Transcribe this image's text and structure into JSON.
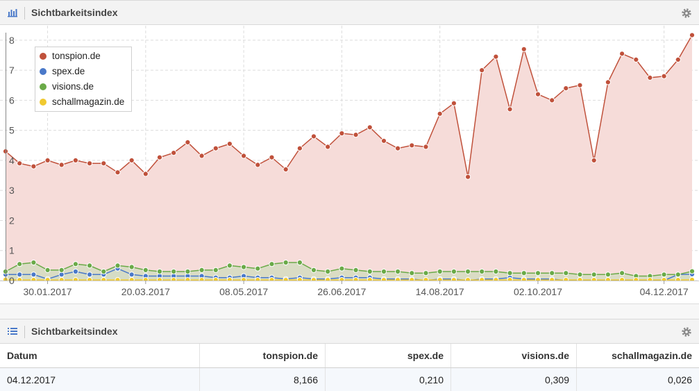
{
  "chart_panel": {
    "title": "Sichtbarkeitsindex",
    "icon": "bar-chart-icon",
    "settings_icon": "gear-icon"
  },
  "table_panel": {
    "title": "Sichtbarkeitsindex",
    "icon": "list-icon",
    "settings_icon": "gear-icon",
    "columns": [
      "Datum",
      "tonspion.de",
      "spex.de",
      "visions.de",
      "schallmagazin.de"
    ],
    "rows": [
      {
        "datum": "04.12.2017",
        "tonspion": "8,166",
        "spex": "0,210",
        "visions": "0,309",
        "schall": "0,026"
      }
    ]
  },
  "chart_data": {
    "type": "area",
    "x_tick_labels": [
      "30.01.2017",
      "20.03.2017",
      "08.05.2017",
      "26.06.2017",
      "14.08.2017",
      "02.10.2017",
      "04.12.2017"
    ],
    "x_tick_weeks": [
      3,
      10,
      17,
      24,
      31,
      38,
      47
    ],
    "y_ticks": [
      0,
      1,
      2,
      3,
      4,
      5,
      6,
      7,
      8
    ],
    "ylim": [
      0,
      8.25
    ],
    "grid": true,
    "legend_position": "top-left",
    "series": [
      {
        "name": "tonspion.de",
        "color": "#c0513b",
        "fill": "#f6dcd9",
        "values": [
          4.3,
          3.9,
          3.8,
          4.0,
          3.85,
          4.0,
          3.9,
          3.9,
          3.6,
          4.0,
          3.55,
          4.1,
          4.25,
          4.6,
          4.15,
          4.4,
          4.55,
          4.15,
          3.85,
          4.1,
          3.7,
          4.4,
          4.8,
          4.45,
          4.9,
          4.85,
          5.1,
          4.65,
          4.4,
          4.5,
          4.45,
          5.55,
          5.9,
          3.45,
          7.0,
          7.45,
          5.7,
          7.7,
          6.2,
          6.0,
          6.4,
          6.5,
          4.0,
          6.6,
          7.55,
          7.35,
          6.75,
          6.8,
          7.35,
          8.166
        ]
      },
      {
        "name": "spex.de",
        "color": "#4a79c9",
        "fill": "#d2d8e6",
        "values": [
          0.2,
          0.2,
          0.2,
          0.05,
          0.2,
          0.3,
          0.2,
          0.2,
          0.4,
          0.2,
          0.15,
          0.15,
          0.15,
          0.15,
          0.15,
          0.1,
          0.1,
          0.15,
          0.1,
          0.1,
          0.05,
          0.1,
          0.05,
          0.05,
          0.1,
          0.1,
          0.1,
          0.05,
          0.05,
          0.05,
          0.0,
          0.05,
          0.05,
          0.0,
          0.05,
          0.05,
          0.1,
          0.05,
          0.05,
          0.05,
          0.0,
          0.0,
          0.0,
          0.0,
          0.0,
          0.0,
          0.0,
          0.0,
          0.2,
          0.21
        ]
      },
      {
        "name": "visions.de",
        "color": "#6aaa48",
        "fill": "#d5dcc0",
        "values": [
          0.3,
          0.55,
          0.6,
          0.35,
          0.35,
          0.55,
          0.5,
          0.3,
          0.5,
          0.45,
          0.35,
          0.3,
          0.3,
          0.3,
          0.35,
          0.35,
          0.5,
          0.45,
          0.4,
          0.55,
          0.6,
          0.6,
          0.35,
          0.3,
          0.4,
          0.35,
          0.3,
          0.3,
          0.3,
          0.25,
          0.25,
          0.3,
          0.3,
          0.3,
          0.3,
          0.3,
          0.25,
          0.25,
          0.25,
          0.25,
          0.25,
          0.2,
          0.2,
          0.2,
          0.25,
          0.15,
          0.15,
          0.2,
          0.2,
          0.309
        ]
      },
      {
        "name": "schallmagazin.de",
        "color": "#f0c930",
        "fill": "#f3eccc",
        "values": [
          0.03,
          0.02,
          0.02,
          0.02,
          0.02,
          0.02,
          0.02,
          0.02,
          0.02,
          0.02,
          0.02,
          0.02,
          0.02,
          0.02,
          0.02,
          0.02,
          0.02,
          0.02,
          0.02,
          0.02,
          0.02,
          0.02,
          0.02,
          0.02,
          0.02,
          0.02,
          0.02,
          0.02,
          0.02,
          0.02,
          0.02,
          0.02,
          0.02,
          0.02,
          0.02,
          0.02,
          0.02,
          0.02,
          0.02,
          0.02,
          0.02,
          0.02,
          0.02,
          0.02,
          0.02,
          0.02,
          0.02,
          0.02,
          0.02,
          0.026
        ]
      }
    ]
  }
}
